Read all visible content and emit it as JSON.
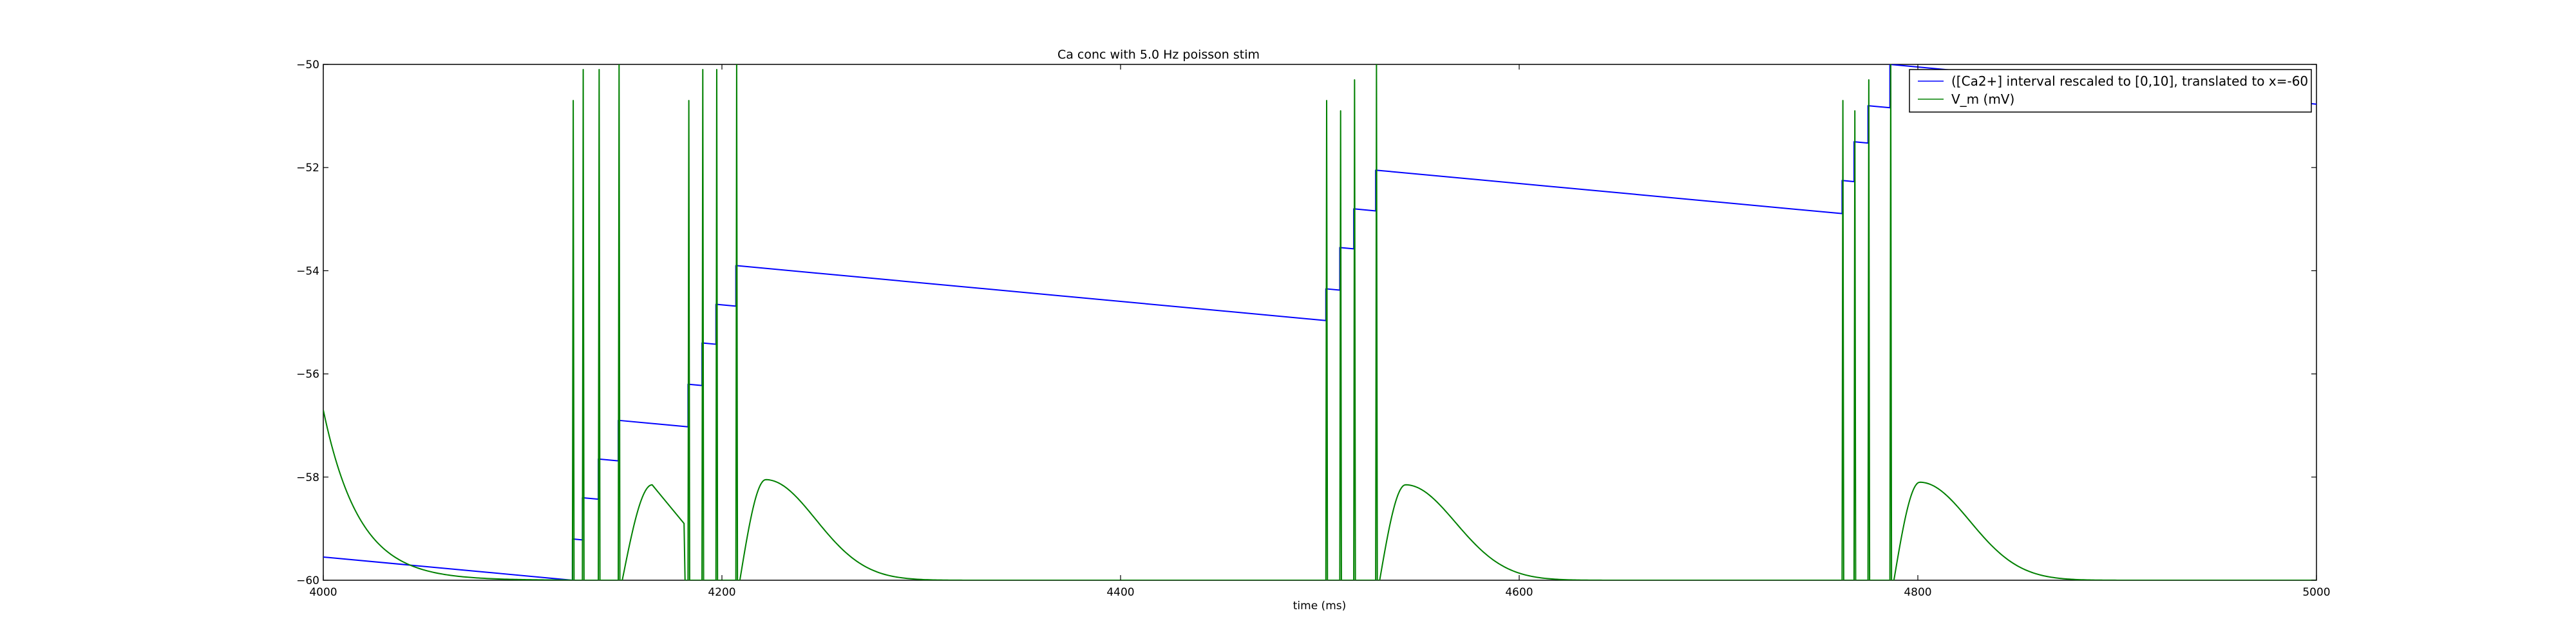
{
  "chart_data": {
    "type": "line",
    "title": "Ca conc with 5.0 Hz poisson stim",
    "xlabel": "time (ms)",
    "ylabel": "",
    "xlim": [
      4000,
      5000
    ],
    "ylim": [
      -60,
      -50
    ],
    "x_ticks": [
      4000,
      4200,
      4400,
      4600,
      4800,
      5000
    ],
    "x_tick_labels": [
      "4000",
      "4200",
      "4400",
      "4600",
      "4800",
      "5000"
    ],
    "y_ticks": [
      -60,
      -58,
      -56,
      -54,
      -52,
      -50
    ],
    "y_tick_labels": [
      "−60",
      "−58",
      "−56",
      "−54",
      "−52",
      "−50"
    ],
    "legend_position": "top-right",
    "series": [
      {
        "name": "([Ca2+] interval rescaled to [0,10], translated to x=-60",
        "color": "#0000ff",
        "kind": "ca",
        "start_value": -59.55,
        "decay_per_ms": 0.0036,
        "spikes": [
          {
            "t": 4125,
            "level": -59.2
          },
          {
            "t": 4130,
            "level": -58.4
          },
          {
            "t": 4138,
            "level": -57.65
          },
          {
            "t": 4148,
            "level": -56.9
          },
          {
            "t": 4183,
            "level": -56.2
          },
          {
            "t": 4190,
            "level": -55.4
          },
          {
            "t": 4197,
            "level": -54.65
          },
          {
            "t": 4207,
            "level": -53.9
          },
          {
            "t": 4503,
            "level": -54.35
          },
          {
            "t": 4510,
            "level": -53.55
          },
          {
            "t": 4517,
            "level": -52.8
          },
          {
            "t": 4528,
            "level": -52.05
          },
          {
            "t": 4762,
            "level": -52.25
          },
          {
            "t": 4768,
            "level": -51.5
          },
          {
            "t": 4775,
            "level": -50.8
          },
          {
            "t": 4786,
            "level": -50.0
          }
        ]
      },
      {
        "name": "V_m (mV)",
        "color": "#008000",
        "kind": "vm",
        "initial_value": -56.7,
        "initial_tau_ms": 18,
        "spike_times": [
          4125,
          4130,
          4138,
          4148,
          4183,
          4190,
          4197,
          4207,
          4503,
          4510,
          4517,
          4528,
          4762,
          4768,
          4775,
          4786
        ],
        "spike_peaks": [
          -50.7,
          -50.1,
          -50.1,
          -50.0,
          -50.7,
          -50.1,
          -50.1,
          -50.0,
          -50.7,
          -50.9,
          -50.3,
          -50.0,
          -50.7,
          -50.9,
          -50.3,
          -50.0
        ],
        "bumps": [
          {
            "t0": 4150,
            "peak_t": 4165,
            "peak": -58.15,
            "end_t": 4181,
            "end_v": -58.9
          },
          {
            "t0": 4209,
            "peak_t": 4222,
            "peak": -58.05,
            "tau_ms": 25
          },
          {
            "t0": 4530,
            "peak_t": 4543,
            "peak": -58.15,
            "tau_ms": 25
          },
          {
            "t0": 4788,
            "peak_t": 4801,
            "peak": -58.1,
            "tau_ms": 25
          }
        ]
      }
    ]
  }
}
